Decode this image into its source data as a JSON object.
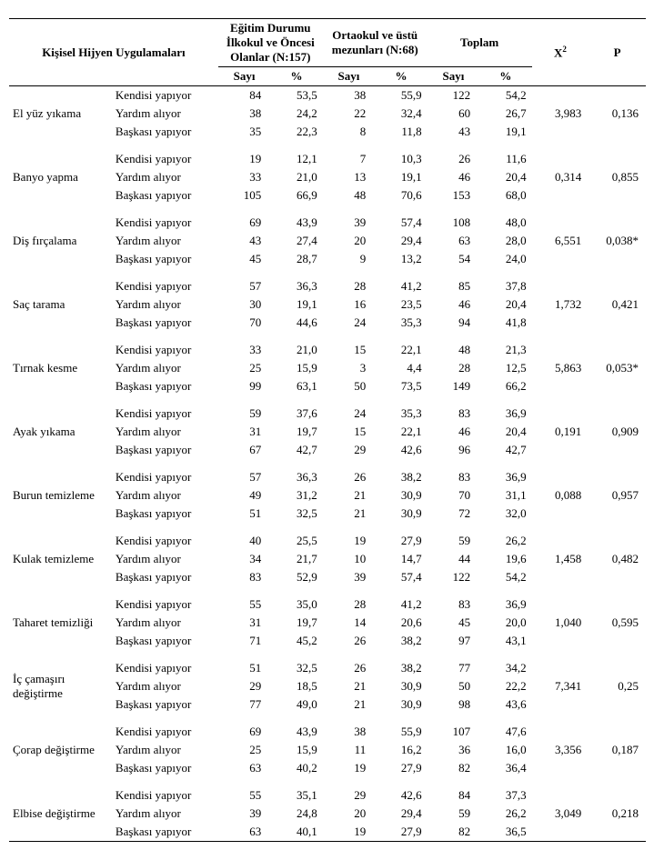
{
  "headers": {
    "practice": "Kişisel Hijyen Uygulamaları",
    "group1": "Eğitim Durumu İlkokul ve Öncesi Olanlar (N:157)",
    "group2": "Ortaokul ve üstü mezunları (N:68)",
    "total": "Toplam",
    "x2_label": "X",
    "x2_sup": "2",
    "p": "P",
    "count": "Sayı",
    "pct": "%"
  },
  "responses": [
    "Kendisi yapıyor",
    "Yardım alıyor",
    "Başkası yapıyor"
  ],
  "groups": [
    {
      "name": "El yüz yıkama",
      "rows": [
        {
          "g1n": "84",
          "g1p": "53,5",
          "g2n": "38",
          "g2p": "55,9",
          "tn": "122",
          "tp": "54,2"
        },
        {
          "g1n": "38",
          "g1p": "24,2",
          "g2n": "22",
          "g2p": "32,4",
          "tn": "60",
          "tp": "26,7"
        },
        {
          "g1n": "35",
          "g1p": "22,3",
          "g2n": "8",
          "g2p": "11,8",
          "tn": "43",
          "tp": "19,1"
        }
      ],
      "x2": "3,983",
      "p": "0,136"
    },
    {
      "name": "Banyo yapma",
      "rows": [
        {
          "g1n": "19",
          "g1p": "12,1",
          "g2n": "7",
          "g2p": "10,3",
          "tn": "26",
          "tp": "11,6"
        },
        {
          "g1n": "33",
          "g1p": "21,0",
          "g2n": "13",
          "g2p": "19,1",
          "tn": "46",
          "tp": "20,4"
        },
        {
          "g1n": "105",
          "g1p": "66,9",
          "g2n": "48",
          "g2p": "70,6",
          "tn": "153",
          "tp": "68,0"
        }
      ],
      "x2": "0,314",
      "p": "0,855"
    },
    {
      "name": "Diş fırçalama",
      "rows": [
        {
          "g1n": "69",
          "g1p": "43,9",
          "g2n": "39",
          "g2p": "57,4",
          "tn": "108",
          "tp": "48,0"
        },
        {
          "g1n": "43",
          "g1p": "27,4",
          "g2n": "20",
          "g2p": "29,4",
          "tn": "63",
          "tp": "28,0"
        },
        {
          "g1n": "45",
          "g1p": "28,7",
          "g2n": "9",
          "g2p": "13,2",
          "tn": "54",
          "tp": "24,0"
        }
      ],
      "x2": "6,551",
      "p": "0,038*"
    },
    {
      "name": "Saç tarama",
      "rows": [
        {
          "g1n": "57",
          "g1p": "36,3",
          "g2n": "28",
          "g2p": "41,2",
          "tn": "85",
          "tp": "37,8"
        },
        {
          "g1n": "30",
          "g1p": "19,1",
          "g2n": "16",
          "g2p": "23,5",
          "tn": "46",
          "tp": "20,4"
        },
        {
          "g1n": "70",
          "g1p": "44,6",
          "g2n": "24",
          "g2p": "35,3",
          "tn": "94",
          "tp": "41,8"
        }
      ],
      "x2": "1,732",
      "p": "0,421"
    },
    {
      "name": "Tırnak kesme",
      "rows": [
        {
          "g1n": "33",
          "g1p": "21,0",
          "g2n": "15",
          "g2p": "22,1",
          "tn": "48",
          "tp": "21,3"
        },
        {
          "g1n": "25",
          "g1p": "15,9",
          "g2n": "3",
          "g2p": "4,4",
          "tn": "28",
          "tp": "12,5"
        },
        {
          "g1n": "99",
          "g1p": "63,1",
          "g2n": "50",
          "g2p": "73,5",
          "tn": "149",
          "tp": "66,2"
        }
      ],
      "x2": "5,863",
      "p": "0,053*"
    },
    {
      "name": "Ayak yıkama",
      "rows": [
        {
          "g1n": "59",
          "g1p": "37,6",
          "g2n": "24",
          "g2p": "35,3",
          "tn": "83",
          "tp": "36,9"
        },
        {
          "g1n": "31",
          "g1p": "19,7",
          "g2n": "15",
          "g2p": "22,1",
          "tn": "46",
          "tp": "20,4"
        },
        {
          "g1n": "67",
          "g1p": "42,7",
          "g2n": "29",
          "g2p": "42,6",
          "tn": "96",
          "tp": "42,7"
        }
      ],
      "x2": "0,191",
      "p": "0,909"
    },
    {
      "name": "Burun temizleme",
      "rows": [
        {
          "g1n": "57",
          "g1p": "36,3",
          "g2n": "26",
          "g2p": "38,2",
          "tn": "83",
          "tp": "36,9"
        },
        {
          "g1n": "49",
          "g1p": "31,2",
          "g2n": "21",
          "g2p": "30,9",
          "tn": "70",
          "tp": "31,1"
        },
        {
          "g1n": "51",
          "g1p": "32,5",
          "g2n": "21",
          "g2p": "30,9",
          "tn": "72",
          "tp": "32,0"
        }
      ],
      "x2": "0,088",
      "p": "0,957"
    },
    {
      "name": "Kulak temizleme",
      "rows": [
        {
          "g1n": "40",
          "g1p": "25,5",
          "g2n": "19",
          "g2p": "27,9",
          "tn": "59",
          "tp": "26,2"
        },
        {
          "g1n": "34",
          "g1p": "21,7",
          "g2n": "10",
          "g2p": "14,7",
          "tn": "44",
          "tp": "19,6"
        },
        {
          "g1n": "83",
          "g1p": "52,9",
          "g2n": "39",
          "g2p": "57,4",
          "tn": "122",
          "tp": "54,2"
        }
      ],
      "x2": "1,458",
      "p": "0,482"
    },
    {
      "name": "Taharet temizliği",
      "rows": [
        {
          "g1n": "55",
          "g1p": "35,0",
          "g2n": "28",
          "g2p": "41,2",
          "tn": "83",
          "tp": "36,9"
        },
        {
          "g1n": "31",
          "g1p": "19,7",
          "g2n": "14",
          "g2p": "20,6",
          "tn": "45",
          "tp": "20,0"
        },
        {
          "g1n": "71",
          "g1p": "45,2",
          "g2n": "26",
          "g2p": "38,2",
          "tn": "97",
          "tp": "43,1"
        }
      ],
      "x2": "1,040",
      "p": "0,595"
    },
    {
      "name": "İç çamaşırı değiştirme",
      "rows": [
        {
          "g1n": "51",
          "g1p": "32,5",
          "g2n": "26",
          "g2p": "38,2",
          "tn": "77",
          "tp": "34,2"
        },
        {
          "g1n": "29",
          "g1p": "18,5",
          "g2n": "21",
          "g2p": "30,9",
          "tn": "50",
          "tp": "22,2"
        },
        {
          "g1n": "77",
          "g1p": "49,0",
          "g2n": "21",
          "g2p": "30,9",
          "tn": "98",
          "tp": "43,6"
        }
      ],
      "x2": "7,341",
      "p": "0,25"
    },
    {
      "name": "Çorap değiştirme",
      "rows": [
        {
          "g1n": "69",
          "g1p": "43,9",
          "g2n": "38",
          "g2p": "55,9",
          "tn": "107",
          "tp": "47,6"
        },
        {
          "g1n": "25",
          "g1p": "15,9",
          "g2n": "11",
          "g2p": "16,2",
          "tn": "36",
          "tp": "16,0"
        },
        {
          "g1n": "63",
          "g1p": "40,2",
          "g2n": "19",
          "g2p": "27,9",
          "tn": "82",
          "tp": "36,4"
        }
      ],
      "x2": "3,356",
      "p": "0,187"
    },
    {
      "name": "Elbise değiştirme",
      "rows": [
        {
          "g1n": "55",
          "g1p": "35,1",
          "g2n": "29",
          "g2p": "42,6",
          "tn": "84",
          "tp": "37,3"
        },
        {
          "g1n": "39",
          "g1p": "24,8",
          "g2n": "20",
          "g2p": "29,4",
          "tn": "59",
          "tp": "26,2"
        },
        {
          "g1n": "63",
          "g1p": "40,1",
          "g2n": "19",
          "g2p": "27,9",
          "tn": "82",
          "tp": "36,5"
        }
      ],
      "x2": "3,049",
      "p": "0,218"
    }
  ]
}
